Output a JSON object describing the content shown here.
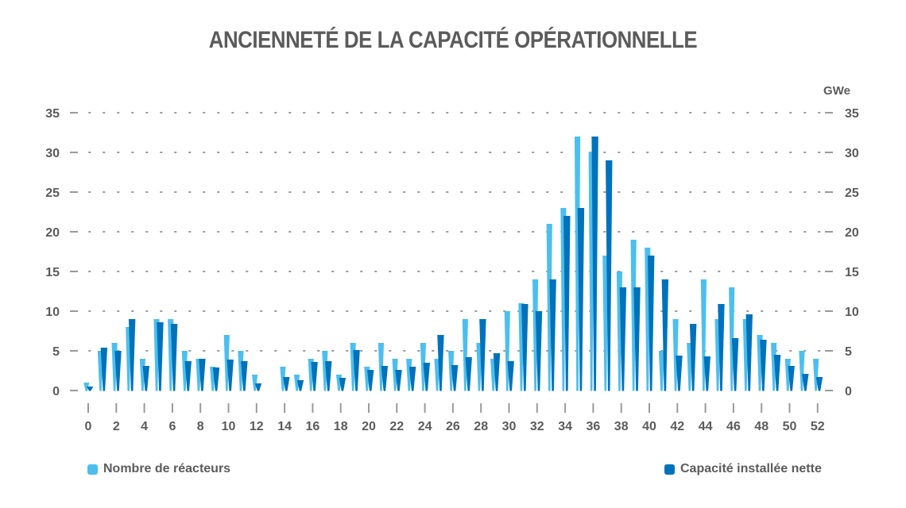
{
  "chart_data": {
    "type": "bar",
    "title": "ANCIENNETÉ DE LA CAPACITÉ OPÉRATIONNELLE",
    "y2_unit": "GWe",
    "ylim": [
      0,
      35
    ],
    "yticks": [
      0,
      5,
      10,
      15,
      20,
      25,
      30,
      35
    ],
    "xticks": [
      0,
      2,
      4,
      6,
      8,
      10,
      12,
      14,
      16,
      18,
      20,
      22,
      24,
      26,
      28,
      30,
      32,
      34,
      36,
      38,
      40,
      42,
      44,
      46,
      48,
      50,
      52
    ],
    "grid": "horizontal dotted",
    "legend_position": "bottom",
    "categories": [
      0,
      1,
      2,
      3,
      4,
      5,
      6,
      7,
      8,
      9,
      10,
      11,
      12,
      13,
      14,
      15,
      16,
      17,
      18,
      19,
      20,
      21,
      22,
      23,
      24,
      25,
      26,
      27,
      28,
      29,
      30,
      31,
      32,
      33,
      34,
      35,
      36,
      37,
      38,
      39,
      40,
      41,
      42,
      43,
      44,
      45,
      46,
      47,
      48,
      49,
      50,
      51,
      52
    ],
    "series": [
      {
        "name": "Nombre de réacteurs",
        "color": "#4cbfee",
        "values": [
          1,
          5,
          6,
          8,
          4,
          9,
          9,
          5,
          4,
          3,
          7,
          5,
          2,
          0,
          3,
          2,
          4,
          5,
          2,
          6,
          3,
          6,
          4,
          4,
          6,
          4,
          5,
          9,
          6,
          4,
          10,
          11,
          14,
          21,
          23,
          32,
          30,
          17,
          15,
          19,
          18,
          5,
          9,
          6,
          14,
          9,
          13,
          9,
          7,
          6,
          4,
          5,
          4
        ]
      },
      {
        "name": "Capacité installée nette",
        "color": "#0072bc",
        "values": [
          0.5,
          5.4,
          5.0,
          9.0,
          3.1,
          8.6,
          8.4,
          3.7,
          4.0,
          2.9,
          3.9,
          3.7,
          0.9,
          0,
          1.7,
          1.3,
          3.6,
          3.7,
          1.6,
          5.1,
          2.6,
          3.1,
          2.6,
          3.0,
          3.5,
          7.0,
          3.2,
          4.2,
          9.0,
          4.7,
          3.7,
          10.9,
          10.0,
          14.0,
          22.0,
          23.0,
          32.0,
          29.0,
          13.0,
          13.0,
          17.0,
          14.0,
          4.4,
          8.4,
          4.3,
          10.9,
          6.6,
          9.6,
          6.4,
          4.5,
          3.1,
          2.1,
          1.7
        ]
      }
    ]
  }
}
